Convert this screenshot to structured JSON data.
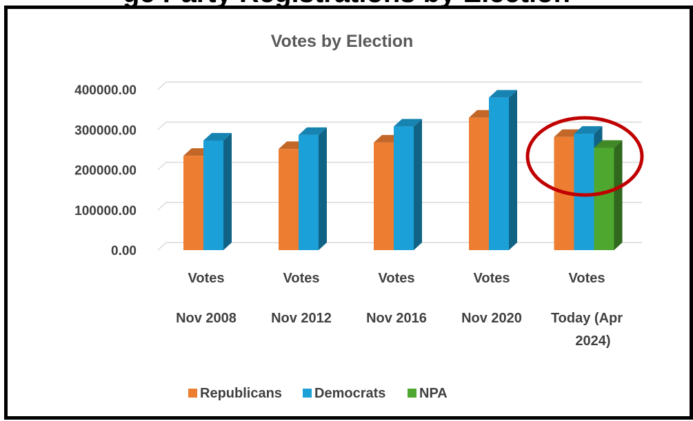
{
  "header_fragment": "ge Party Registrations by Election",
  "chart_data": {
    "type": "bar",
    "title": "Votes by Election",
    "categories": [
      [
        "Votes",
        "Nov 2008"
      ],
      [
        "Votes",
        "Nov 2012"
      ],
      [
        "Votes",
        "Nov 2016"
      ],
      [
        "Votes",
        "Nov 2020"
      ],
      [
        "Votes",
        "Today (Apr",
        "2024)"
      ]
    ],
    "y_ticks": [
      "0.00",
      "100000.00",
      "200000.00",
      "300000.00",
      "400000.00"
    ],
    "ylim": [
      0,
      400000
    ],
    "grid": true,
    "legend_position": "bottom",
    "series": [
      {
        "name": "Republicans",
        "color": "#ED7D31",
        "values": [
          235000,
          252000,
          268000,
          330000,
          282000
        ]
      },
      {
        "name": "Democrats",
        "color": "#1BA0D8",
        "values": [
          273000,
          287000,
          308000,
          380000,
          290000
        ]
      },
      {
        "name": "NPA",
        "color": "#4EA72E",
        "values": [
          null,
          null,
          null,
          null,
          255000
        ]
      }
    ],
    "annotation": {
      "type": "ellipse",
      "color": "#C00000",
      "target_category": 4
    }
  }
}
